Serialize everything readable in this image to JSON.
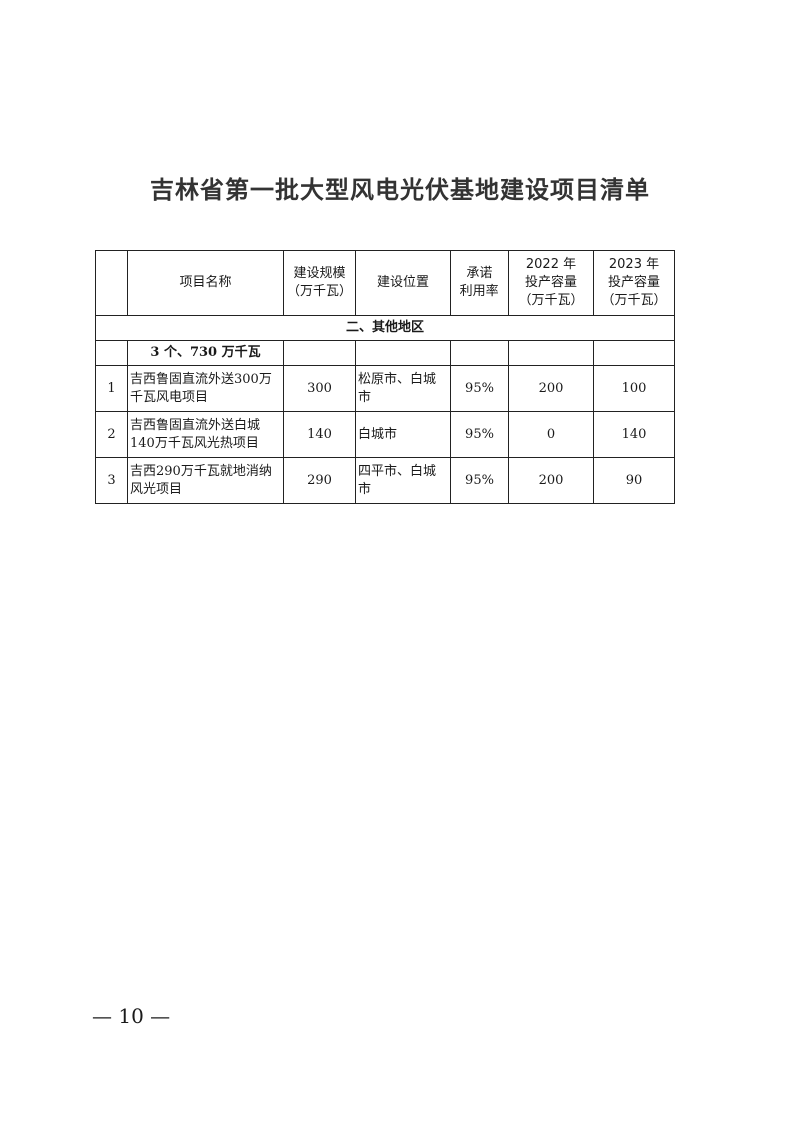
{
  "title": "吉林省第一批大型风电光伏基地建设项目清单",
  "table": {
    "headers": [
      "",
      "项目名称",
      "建设规模（万千瓦）",
      "建设位置",
      "承诺利用率",
      "2022年投产容量（万千瓦）",
      "2023年投产容量（万千瓦）"
    ],
    "header_lines": {
      "name": "项目名称",
      "scale": [
        "建设规模",
        "（万千瓦）"
      ],
      "location": "建设位置",
      "rate": [
        "承诺",
        "利用率"
      ],
      "y2022": [
        "2022 年",
        "投产容量",
        "（万千瓦）"
      ],
      "y2023": [
        "2023 年",
        "投产容量",
        "（万千瓦）"
      ]
    },
    "section": "二、其他地区",
    "subtotal": "3 个、730 万千瓦",
    "rows": [
      {
        "no": "1",
        "name": "吉西鲁固直流外送300万千瓦风电项目",
        "scale": "300",
        "location": "松原市、白城市",
        "rate": "95%",
        "y2022": "200",
        "y2023": "100"
      },
      {
        "no": "2",
        "name": "吉西鲁固直流外送白城140万千瓦风光热项目",
        "scale": "140",
        "location": "白城市",
        "rate": "95%",
        "y2022": "0",
        "y2023": "140"
      },
      {
        "no": "3",
        "name": "吉西290万千瓦就地消纳风光项目",
        "scale": "290",
        "location": "四平市、白城市",
        "rate": "95%",
        "y2022": "200",
        "y2023": "90"
      }
    ]
  },
  "page_number": "— 10 —"
}
